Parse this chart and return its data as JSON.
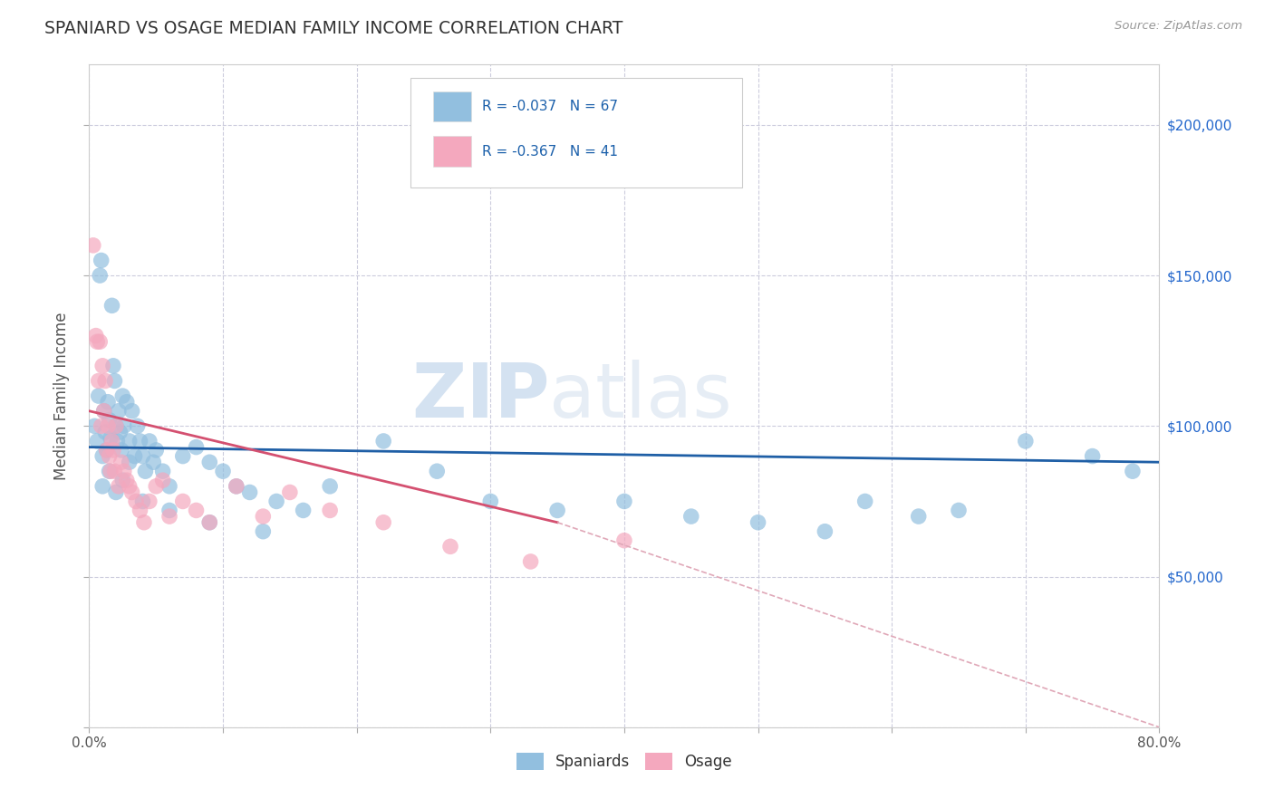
{
  "title": "SPANIARD VS OSAGE MEDIAN FAMILY INCOME CORRELATION CHART",
  "source_text": "Source: ZipAtlas.com",
  "ylabel": "Median Family Income",
  "xlim": [
    0.0,
    0.8
  ],
  "ylim": [
    0,
    220000
  ],
  "yticks": [
    0,
    50000,
    100000,
    150000,
    200000
  ],
  "ytick_labels": [
    "",
    "$50,000",
    "$100,000",
    "$150,000",
    "$200,000"
  ],
  "xticks": [
    0.0,
    0.1,
    0.2,
    0.3,
    0.4,
    0.5,
    0.6,
    0.7,
    0.8
  ],
  "xtick_labels": [
    "0.0%",
    "",
    "",
    "",
    "",
    "",
    "",
    "",
    "80.0%"
  ],
  "watermark_zip": "ZIP",
  "watermark_atlas": "atlas",
  "spaniards_color": "#92bfdf",
  "osage_color": "#f4a8be",
  "trendline_spaniards_color": "#1f5fa6",
  "trendline_osage_color": "#d45070",
  "trendline_osage_dashed_color": "#e0a8b8",
  "background_color": "#ffffff",
  "grid_color": "#ccccdd",
  "legend_r1": "R = -0.037   N = 67",
  "legend_r2": "R = -0.367   N = 41",
  "legend_color": "#1a5faa",
  "spaniards_x": [
    0.004,
    0.006,
    0.007,
    0.008,
    0.009,
    0.01,
    0.011,
    0.012,
    0.013,
    0.014,
    0.015,
    0.016,
    0.017,
    0.018,
    0.019,
    0.02,
    0.021,
    0.022,
    0.023,
    0.024,
    0.025,
    0.026,
    0.028,
    0.03,
    0.032,
    0.034,
    0.036,
    0.038,
    0.04,
    0.042,
    0.045,
    0.048,
    0.05,
    0.055,
    0.06,
    0.07,
    0.08,
    0.09,
    0.1,
    0.11,
    0.12,
    0.14,
    0.16,
    0.18,
    0.22,
    0.26,
    0.3,
    0.35,
    0.4,
    0.45,
    0.5,
    0.55,
    0.58,
    0.62,
    0.65,
    0.7,
    0.75,
    0.78,
    0.01,
    0.015,
    0.02,
    0.025,
    0.03,
    0.04,
    0.06,
    0.09,
    0.13
  ],
  "spaniards_y": [
    100000,
    95000,
    110000,
    150000,
    155000,
    90000,
    105000,
    98000,
    92000,
    108000,
    102000,
    96000,
    140000,
    120000,
    115000,
    100000,
    95000,
    105000,
    98000,
    92000,
    110000,
    100000,
    108000,
    95000,
    105000,
    90000,
    100000,
    95000,
    90000,
    85000,
    95000,
    88000,
    92000,
    85000,
    80000,
    90000,
    93000,
    88000,
    85000,
    80000,
    78000,
    75000,
    72000,
    80000,
    95000,
    85000,
    75000,
    72000,
    75000,
    70000,
    68000,
    65000,
    75000,
    70000,
    72000,
    95000,
    90000,
    85000,
    80000,
    85000,
    78000,
    82000,
    88000,
    75000,
    72000,
    68000,
    65000
  ],
  "osage_x": [
    0.003,
    0.005,
    0.006,
    0.007,
    0.008,
    0.009,
    0.01,
    0.011,
    0.012,
    0.013,
    0.014,
    0.015,
    0.016,
    0.017,
    0.018,
    0.019,
    0.02,
    0.022,
    0.024,
    0.026,
    0.028,
    0.03,
    0.032,
    0.035,
    0.038,
    0.041,
    0.045,
    0.05,
    0.055,
    0.06,
    0.07,
    0.08,
    0.09,
    0.11,
    0.13,
    0.15,
    0.18,
    0.22,
    0.27,
    0.33,
    0.4
  ],
  "osage_y": [
    160000,
    130000,
    128000,
    115000,
    128000,
    100000,
    120000,
    105000,
    115000,
    92000,
    100000,
    90000,
    85000,
    95000,
    92000,
    85000,
    100000,
    80000,
    88000,
    85000,
    82000,
    80000,
    78000,
    75000,
    72000,
    68000,
    75000,
    80000,
    82000,
    70000,
    75000,
    72000,
    68000,
    80000,
    70000,
    78000,
    72000,
    68000,
    60000,
    55000,
    62000
  ],
  "trendline_spaniards_x0": 0.0,
  "trendline_spaniards_x1": 0.8,
  "trendline_spaniards_y0": 93000,
  "trendline_spaniards_y1": 88000,
  "trendline_osage_solid_x0": 0.0,
  "trendline_osage_solid_x1": 0.35,
  "trendline_osage_y0": 105000,
  "trendline_osage_y1": 68000,
  "trendline_osage_dash_x0": 0.35,
  "trendline_osage_dash_x1": 0.8,
  "trendline_osage_dash_y0": 68000,
  "trendline_osage_dash_y1": 0
}
